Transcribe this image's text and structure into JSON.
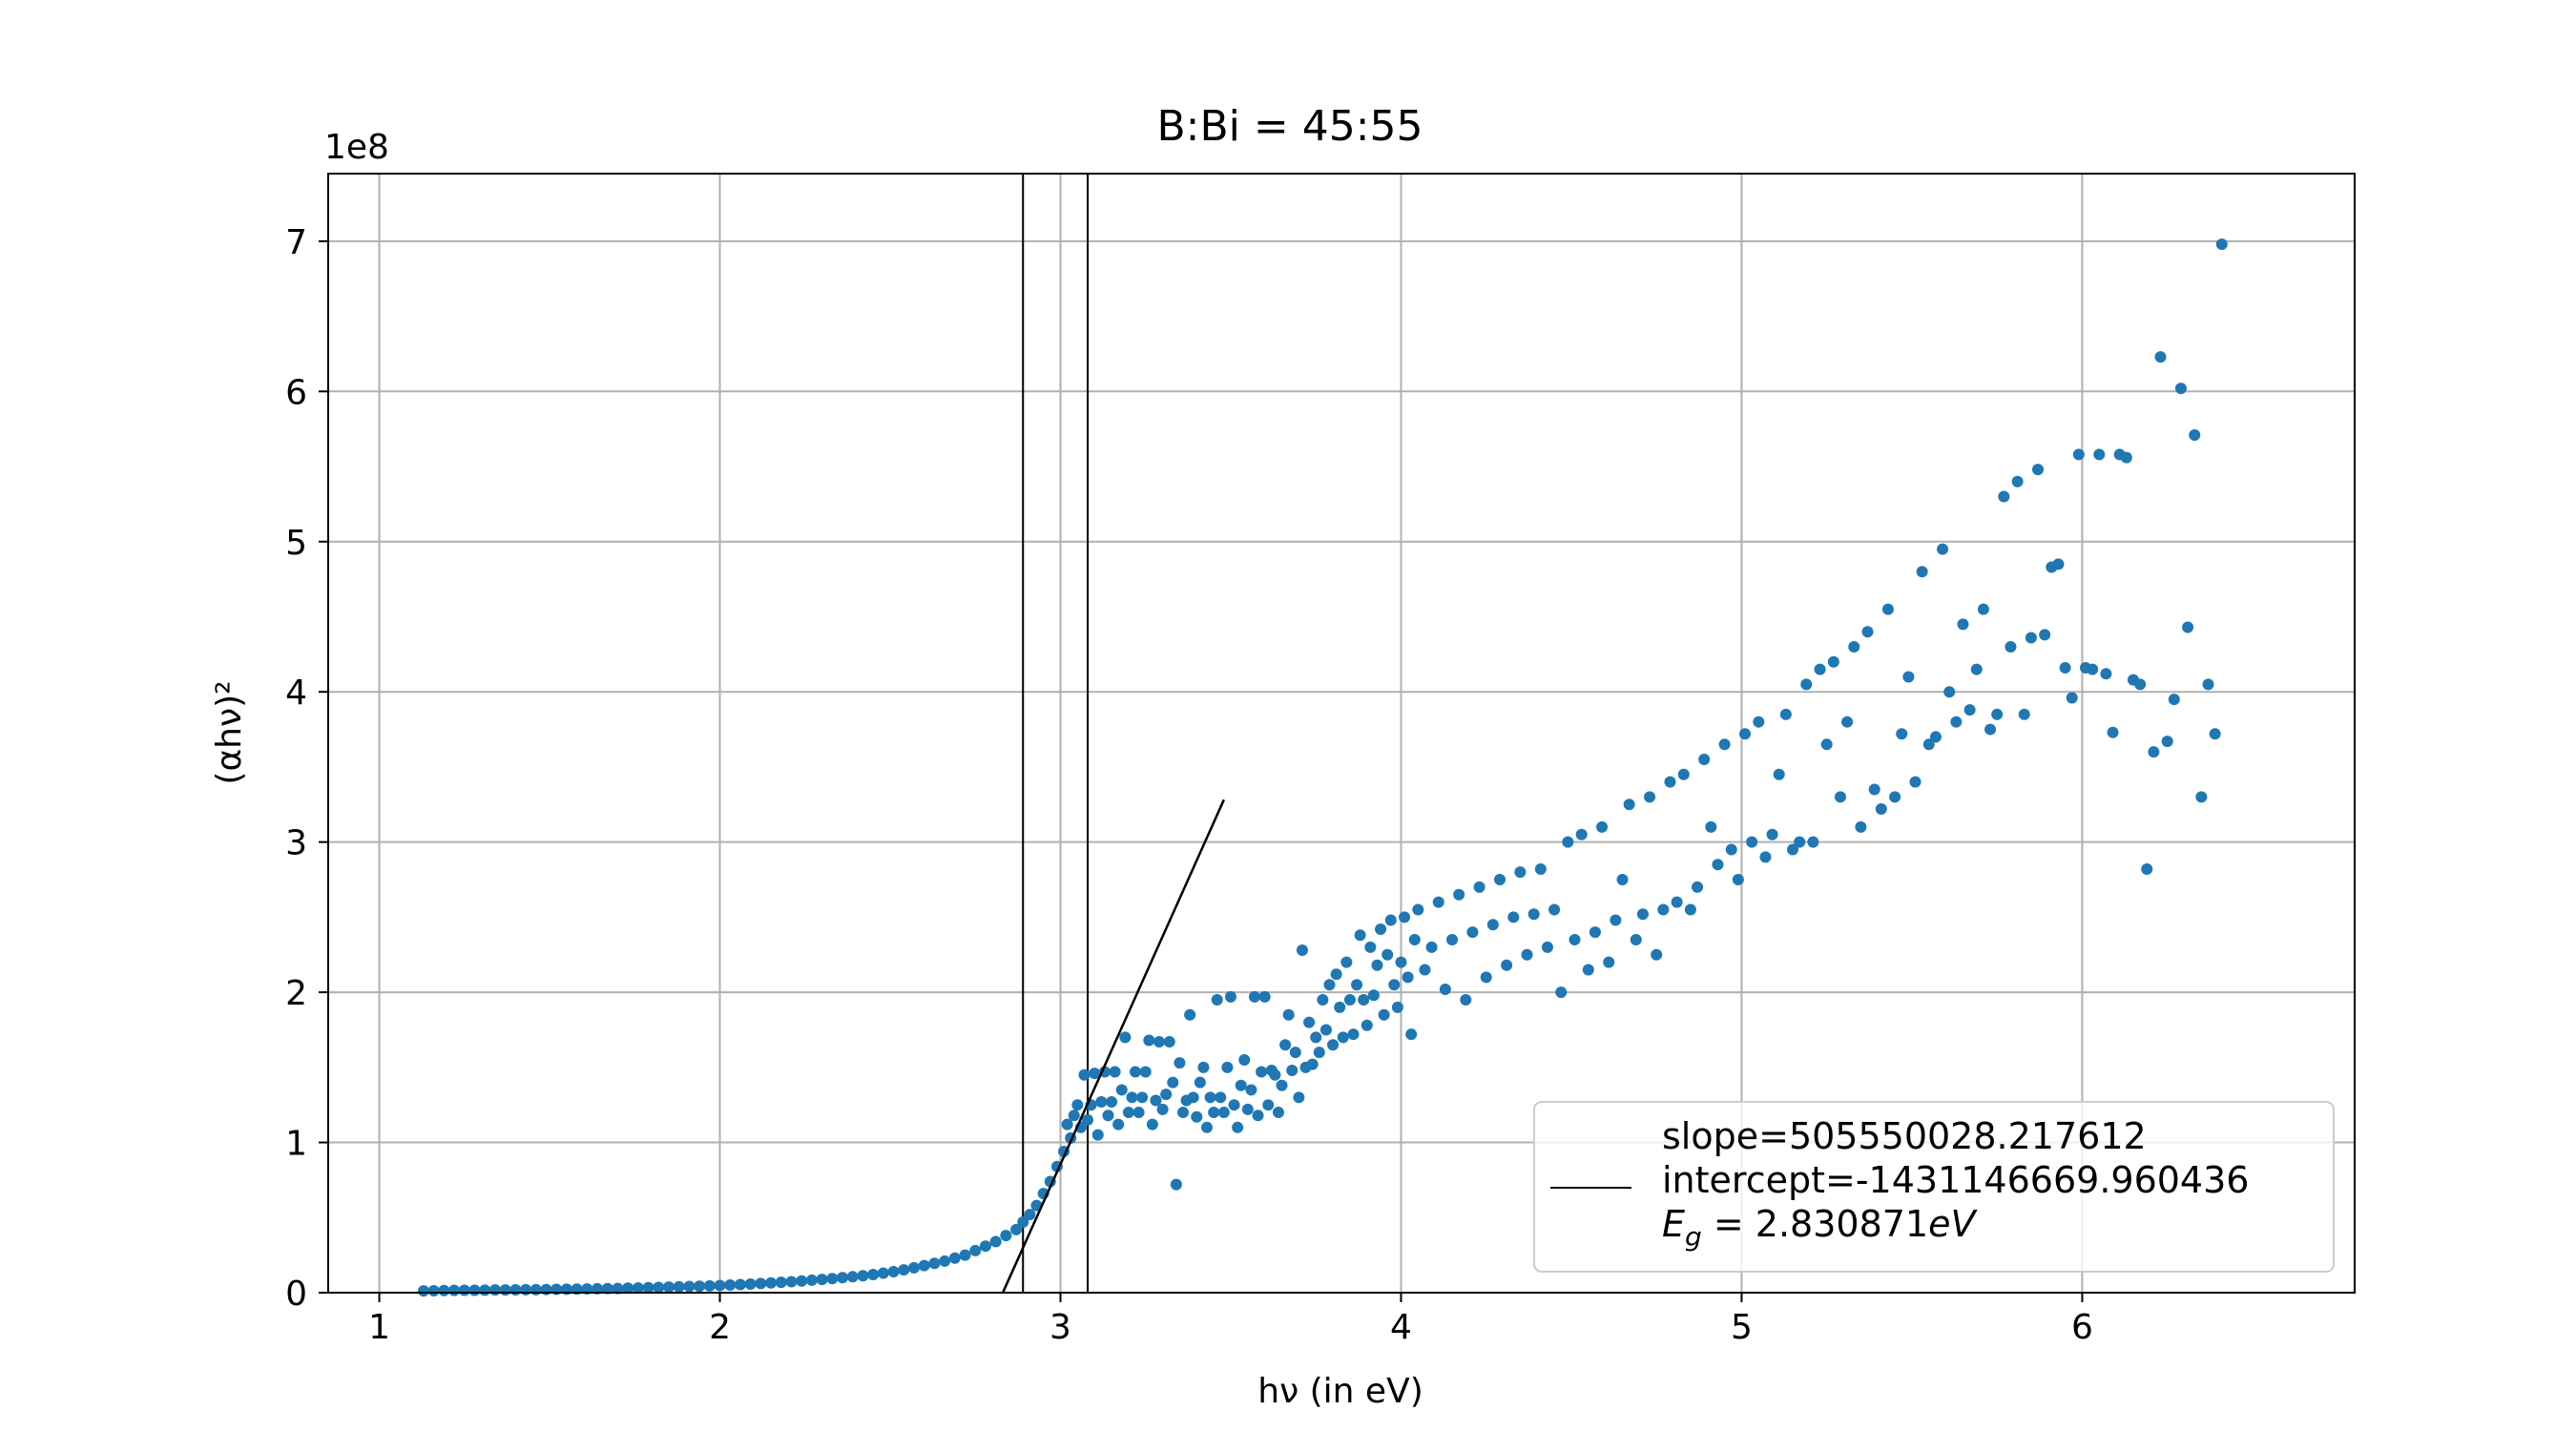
{
  "chart_data": {
    "type": "scatter",
    "title": "B:Bi = 45:55",
    "xlabel": "hν (in eV)",
    "ylabel": "(αhν)²",
    "y_offset_label": "1e8",
    "y_scale_factor": 100000000,
    "xlim": [
      0.85,
      6.8
    ],
    "ylim": [
      0,
      745000000
    ],
    "x_ticks": [
      1,
      2,
      3,
      4,
      5,
      6
    ],
    "y_ticks": [
      0,
      1,
      2,
      3,
      4,
      5,
      6,
      7
    ],
    "grid": true,
    "legend_position": "lower-right",
    "legend": {
      "line1": "slope=505550028.217612",
      "line2": "intercept=-1431146669.960436",
      "line3_symbol": "E",
      "line3_sub": "g",
      "line3_value": " = 2.830871",
      "line3_unit": "eV"
    },
    "marker_color": "#1f77b4",
    "grid_color": "#b0b0b0",
    "fit_line": {
      "slope": 505550028.217612,
      "intercept": -1431146669.960436,
      "x_start": 2.83,
      "x_end": 3.48
    },
    "vertical_lines": [
      {
        "x": 2.89,
        "color": "#000000"
      },
      {
        "x": 3.0,
        "color": "#b0b0b0"
      },
      {
        "x": 3.08,
        "color": "#000000"
      }
    ],
    "series": [
      {
        "values": [
          [
            1.13,
            0.012
          ],
          [
            1.16,
            0.013
          ],
          [
            1.19,
            0.014
          ],
          [
            1.22,
            0.015
          ],
          [
            1.25,
            0.016
          ],
          [
            1.28,
            0.016
          ],
          [
            1.31,
            0.017
          ],
          [
            1.34,
            0.018
          ],
          [
            1.37,
            0.018
          ],
          [
            1.4,
            0.019
          ],
          [
            1.43,
            0.02
          ],
          [
            1.46,
            0.02
          ],
          [
            1.49,
            0.021
          ],
          [
            1.52,
            0.022
          ],
          [
            1.55,
            0.023
          ],
          [
            1.58,
            0.024
          ],
          [
            1.61,
            0.025
          ],
          [
            1.64,
            0.026
          ],
          [
            1.67,
            0.027
          ],
          [
            1.7,
            0.028
          ],
          [
            1.73,
            0.03
          ],
          [
            1.76,
            0.031
          ],
          [
            1.79,
            0.033
          ],
          [
            1.82,
            0.035
          ],
          [
            1.85,
            0.037
          ],
          [
            1.88,
            0.039
          ],
          [
            1.91,
            0.041
          ],
          [
            1.94,
            0.043
          ],
          [
            1.97,
            0.045
          ],
          [
            2.0,
            0.048
          ],
          [
            2.03,
            0.051
          ],
          [
            2.06,
            0.054
          ],
          [
            2.09,
            0.057
          ],
          [
            2.12,
            0.061
          ],
          [
            2.15,
            0.065
          ],
          [
            2.18,
            0.069
          ],
          [
            2.21,
            0.073
          ],
          [
            2.24,
            0.078
          ],
          [
            2.27,
            0.083
          ],
          [
            2.3,
            0.088
          ],
          [
            2.33,
            0.094
          ],
          [
            2.36,
            0.1
          ],
          [
            2.39,
            0.106
          ],
          [
            2.42,
            0.113
          ],
          [
            2.45,
            0.121
          ],
          [
            2.48,
            0.13
          ],
          [
            2.51,
            0.14
          ],
          [
            2.54,
            0.152
          ],
          [
            2.57,
            0.166
          ],
          [
            2.6,
            0.18
          ],
          [
            2.63,
            0.195
          ],
          [
            2.66,
            0.21
          ],
          [
            2.69,
            0.23
          ],
          [
            2.72,
            0.25
          ],
          [
            2.75,
            0.28
          ],
          [
            2.78,
            0.31
          ],
          [
            2.81,
            0.34
          ],
          [
            2.84,
            0.38
          ],
          [
            2.87,
            0.42
          ],
          [
            2.89,
            0.47
          ],
          [
            2.91,
            0.52
          ],
          [
            2.93,
            0.58
          ],
          [
            2.95,
            0.66
          ],
          [
            2.97,
            0.74
          ],
          [
            2.99,
            0.84
          ],
          [
            3.01,
            0.94
          ],
          [
            3.03,
            1.03
          ],
          [
            3.02,
            1.12
          ],
          [
            3.04,
            1.18
          ],
          [
            3.05,
            1.25
          ],
          [
            3.06,
            1.1
          ],
          [
            3.07,
            1.45
          ],
          [
            3.08,
            1.15
          ],
          [
            3.09,
            1.25
          ],
          [
            3.1,
            1.46
          ],
          [
            3.11,
            1.05
          ],
          [
            3.12,
            1.27
          ],
          [
            3.13,
            1.47
          ],
          [
            3.14,
            1.18
          ],
          [
            3.15,
            1.27
          ],
          [
            3.16,
            1.47
          ],
          [
            3.17,
            1.12
          ],
          [
            3.18,
            1.35
          ],
          [
            3.19,
            1.7
          ],
          [
            3.2,
            1.2
          ],
          [
            3.21,
            1.3
          ],
          [
            3.22,
            1.47
          ],
          [
            3.23,
            1.2
          ],
          [
            3.24,
            1.3
          ],
          [
            3.25,
            1.47
          ],
          [
            3.26,
            1.68
          ],
          [
            3.27,
            1.12
          ],
          [
            3.28,
            1.28
          ],
          [
            3.29,
            1.67
          ],
          [
            3.3,
            1.22
          ],
          [
            3.31,
            1.32
          ],
          [
            3.32,
            1.67
          ],
          [
            3.33,
            1.4
          ],
          [
            3.34,
            0.72
          ],
          [
            3.35,
            1.53
          ],
          [
            3.36,
            1.2
          ],
          [
            3.37,
            1.28
          ],
          [
            3.38,
            1.85
          ],
          [
            3.39,
            1.3
          ],
          [
            3.4,
            1.17
          ],
          [
            3.41,
            1.4
          ],
          [
            3.42,
            1.5
          ],
          [
            3.43,
            1.1
          ],
          [
            3.44,
            1.3
          ],
          [
            3.45,
            1.2
          ],
          [
            3.46,
            1.95
          ],
          [
            3.47,
            1.3
          ],
          [
            3.48,
            1.2
          ],
          [
            3.49,
            1.5
          ],
          [
            3.5,
            1.97
          ],
          [
            3.51,
            1.25
          ],
          [
            3.52,
            1.1
          ],
          [
            3.53,
            1.38
          ],
          [
            3.54,
            1.55
          ],
          [
            3.55,
            1.22
          ],
          [
            3.56,
            1.35
          ],
          [
            3.57,
            1.97
          ],
          [
            3.58,
            1.18
          ],
          [
            3.59,
            1.47
          ],
          [
            3.6,
            1.97
          ],
          [
            3.61,
            1.25
          ],
          [
            3.62,
            1.48
          ],
          [
            3.63,
            1.45
          ],
          [
            3.64,
            1.2
          ],
          [
            3.65,
            1.38
          ],
          [
            3.66,
            1.65
          ],
          [
            3.67,
            1.85
          ],
          [
            3.68,
            1.48
          ],
          [
            3.69,
            1.6
          ],
          [
            3.7,
            1.3
          ],
          [
            3.71,
            2.28
          ],
          [
            3.72,
            1.5
          ],
          [
            3.73,
            1.8
          ],
          [
            3.74,
            1.52
          ],
          [
            3.75,
            1.7
          ],
          [
            3.76,
            1.6
          ],
          [
            3.77,
            1.95
          ],
          [
            3.78,
            1.75
          ],
          [
            3.79,
            2.05
          ],
          [
            3.8,
            1.65
          ],
          [
            3.81,
            2.12
          ],
          [
            3.82,
            1.9
          ],
          [
            3.83,
            1.7
          ],
          [
            3.84,
            2.2
          ],
          [
            3.85,
            1.95
          ],
          [
            3.86,
            1.72
          ],
          [
            3.87,
            2.05
          ],
          [
            3.88,
            2.38
          ],
          [
            3.89,
            1.95
          ],
          [
            3.9,
            1.78
          ],
          [
            3.91,
            2.3
          ],
          [
            3.92,
            1.98
          ],
          [
            3.93,
            2.18
          ],
          [
            3.94,
            2.42
          ],
          [
            3.95,
            1.85
          ],
          [
            3.96,
            2.25
          ],
          [
            3.97,
            2.48
          ],
          [
            3.98,
            2.05
          ],
          [
            3.99,
            1.9
          ],
          [
            4.0,
            2.2
          ],
          [
            4.01,
            2.5
          ],
          [
            4.02,
            2.1
          ],
          [
            4.03,
            1.72
          ],
          [
            4.04,
            2.35
          ],
          [
            4.05,
            2.55
          ],
          [
            4.07,
            2.15
          ],
          [
            4.09,
            2.3
          ],
          [
            4.11,
            2.6
          ],
          [
            4.13,
            2.02
          ],
          [
            4.15,
            2.35
          ],
          [
            4.17,
            2.65
          ],
          [
            4.19,
            1.95
          ],
          [
            4.21,
            2.4
          ],
          [
            4.23,
            2.7
          ],
          [
            4.25,
            2.1
          ],
          [
            4.27,
            2.45
          ],
          [
            4.29,
            2.75
          ],
          [
            4.31,
            2.18
          ],
          [
            4.33,
            2.5
          ],
          [
            4.35,
            2.8
          ],
          [
            4.37,
            2.25
          ],
          [
            4.39,
            2.52
          ],
          [
            4.41,
            2.82
          ],
          [
            4.43,
            2.3
          ],
          [
            4.45,
            2.55
          ],
          [
            4.47,
            2.0
          ],
          [
            4.49,
            3.0
          ],
          [
            4.51,
            2.35
          ],
          [
            4.53,
            3.05
          ],
          [
            4.55,
            2.15
          ],
          [
            4.57,
            2.4
          ],
          [
            4.59,
            3.1
          ],
          [
            4.61,
            2.2
          ],
          [
            4.63,
            2.48
          ],
          [
            4.65,
            2.75
          ],
          [
            4.67,
            3.25
          ],
          [
            4.69,
            2.35
          ],
          [
            4.71,
            2.52
          ],
          [
            4.73,
            3.3
          ],
          [
            4.75,
            2.25
          ],
          [
            4.77,
            2.55
          ],
          [
            4.79,
            3.4
          ],
          [
            4.81,
            2.6
          ],
          [
            4.83,
            3.45
          ],
          [
            4.85,
            2.55
          ],
          [
            4.87,
            2.7
          ],
          [
            4.89,
            3.55
          ],
          [
            4.91,
            3.1
          ],
          [
            4.93,
            2.85
          ],
          [
            4.95,
            3.65
          ],
          [
            4.97,
            2.95
          ],
          [
            4.99,
            2.75
          ],
          [
            5.01,
            3.72
          ],
          [
            5.03,
            3.0
          ],
          [
            5.05,
            3.8
          ],
          [
            5.07,
            2.9
          ],
          [
            5.09,
            3.05
          ],
          [
            5.11,
            3.45
          ],
          [
            5.13,
            3.85
          ],
          [
            5.15,
            2.95
          ],
          [
            5.17,
            3.0
          ],
          [
            5.19,
            4.05
          ],
          [
            5.21,
            3.0
          ],
          [
            5.23,
            4.15
          ],
          [
            5.25,
            3.65
          ],
          [
            5.27,
            4.2
          ],
          [
            5.29,
            3.3
          ],
          [
            5.31,
            3.8
          ],
          [
            5.33,
            4.3
          ],
          [
            5.35,
            3.1
          ],
          [
            5.37,
            4.4
          ],
          [
            5.39,
            3.35
          ],
          [
            5.41,
            3.22
          ],
          [
            5.43,
            4.55
          ],
          [
            5.45,
            3.3
          ],
          [
            5.47,
            3.72
          ],
          [
            5.49,
            4.1
          ],
          [
            5.51,
            3.4
          ],
          [
            5.53,
            4.8
          ],
          [
            5.55,
            3.65
          ],
          [
            5.57,
            3.7
          ],
          [
            5.59,
            4.95
          ],
          [
            5.61,
            4.0
          ],
          [
            5.63,
            3.8
          ],
          [
            5.65,
            4.45
          ],
          [
            5.67,
            3.88
          ],
          [
            5.69,
            4.15
          ],
          [
            5.71,
            4.55
          ],
          [
            5.73,
            3.75
          ],
          [
            5.75,
            3.85
          ],
          [
            5.77,
            5.3
          ],
          [
            5.79,
            4.3
          ],
          [
            5.81,
            5.4
          ],
          [
            5.83,
            3.85
          ],
          [
            5.85,
            4.36
          ],
          [
            5.87,
            5.48
          ],
          [
            5.89,
            4.38
          ],
          [
            5.91,
            4.83
          ],
          [
            5.93,
            4.85
          ],
          [
            5.95,
            4.16
          ],
          [
            5.97,
            3.96
          ],
          [
            5.99,
            5.58
          ],
          [
            6.01,
            4.16
          ],
          [
            6.03,
            4.15
          ],
          [
            6.05,
            5.58
          ],
          [
            6.07,
            4.12
          ],
          [
            6.09,
            3.73
          ],
          [
            6.11,
            5.58
          ],
          [
            6.13,
            5.56
          ],
          [
            6.15,
            4.08
          ],
          [
            6.17,
            4.05
          ],
          [
            6.19,
            2.82
          ],
          [
            6.21,
            3.6
          ],
          [
            6.23,
            6.23
          ],
          [
            6.25,
            3.67
          ],
          [
            6.27,
            3.95
          ],
          [
            6.29,
            6.02
          ],
          [
            6.31,
            4.43
          ],
          [
            6.33,
            5.71
          ],
          [
            6.35,
            3.3
          ],
          [
            6.37,
            4.05
          ],
          [
            6.39,
            3.72
          ],
          [
            6.41,
            6.98
          ]
        ]
      }
    ]
  }
}
